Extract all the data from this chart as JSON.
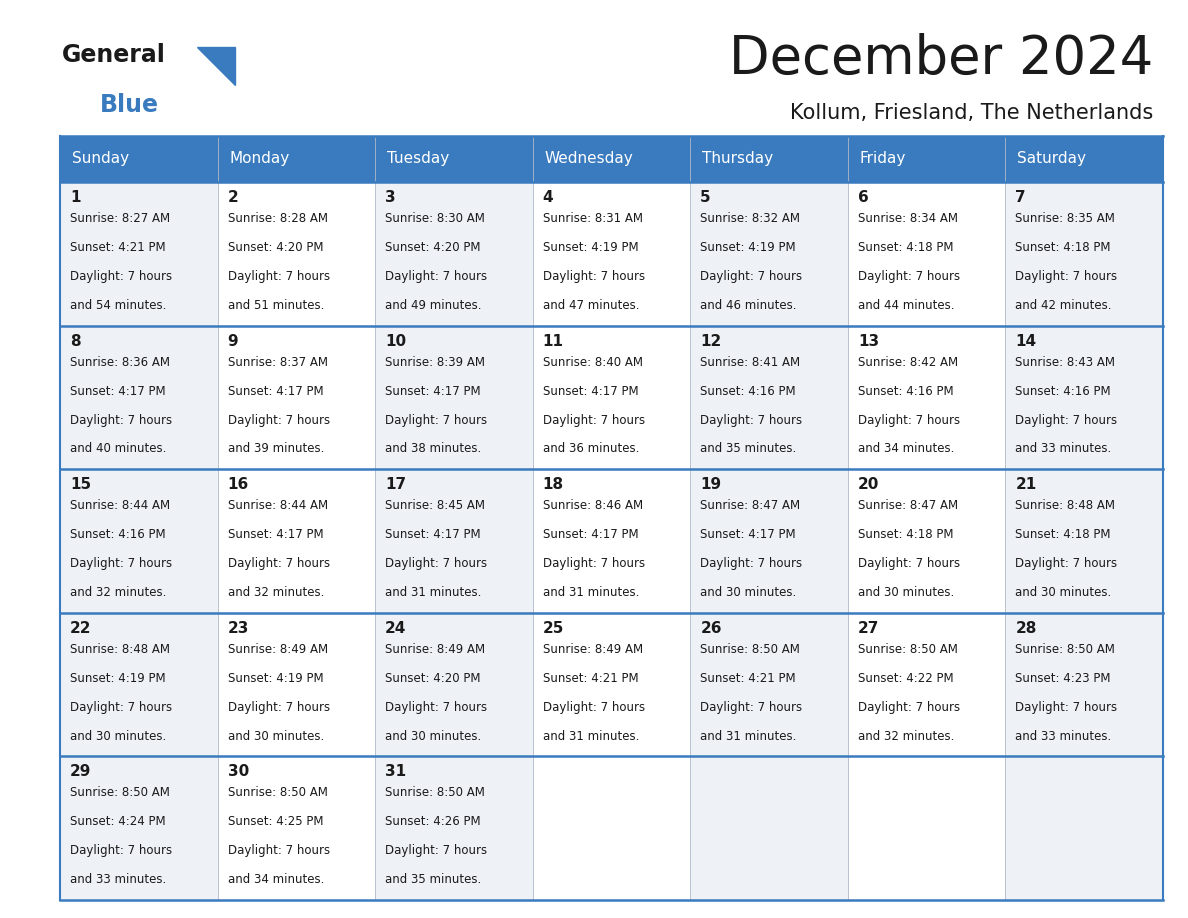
{
  "title": "December 2024",
  "subtitle": "Kollum, Friesland, The Netherlands",
  "header_color": "#3a7bbf",
  "header_text_color": "#ffffff",
  "cell_bg_even": "#eef2f7",
  "cell_bg_odd": "#ffffff",
  "border_color": "#3a7bbf",
  "text_color": "#1a1a1a",
  "days_of_week": [
    "Sunday",
    "Monday",
    "Tuesday",
    "Wednesday",
    "Thursday",
    "Friday",
    "Saturday"
  ],
  "calendar_data": [
    [
      {
        "day": 1,
        "sunrise": "8:27 AM",
        "sunset": "4:21 PM",
        "daylight": "7 hours",
        "daylight2": "and 54 minutes."
      },
      {
        "day": 2,
        "sunrise": "8:28 AM",
        "sunset": "4:20 PM",
        "daylight": "7 hours",
        "daylight2": "and 51 minutes."
      },
      {
        "day": 3,
        "sunrise": "8:30 AM",
        "sunset": "4:20 PM",
        "daylight": "7 hours",
        "daylight2": "and 49 minutes."
      },
      {
        "day": 4,
        "sunrise": "8:31 AM",
        "sunset": "4:19 PM",
        "daylight": "7 hours",
        "daylight2": "and 47 minutes."
      },
      {
        "day": 5,
        "sunrise": "8:32 AM",
        "sunset": "4:19 PM",
        "daylight": "7 hours",
        "daylight2": "and 46 minutes."
      },
      {
        "day": 6,
        "sunrise": "8:34 AM",
        "sunset": "4:18 PM",
        "daylight": "7 hours",
        "daylight2": "and 44 minutes."
      },
      {
        "day": 7,
        "sunrise": "8:35 AM",
        "sunset": "4:18 PM",
        "daylight": "7 hours",
        "daylight2": "and 42 minutes."
      }
    ],
    [
      {
        "day": 8,
        "sunrise": "8:36 AM",
        "sunset": "4:17 PM",
        "daylight": "7 hours",
        "daylight2": "and 40 minutes."
      },
      {
        "day": 9,
        "sunrise": "8:37 AM",
        "sunset": "4:17 PM",
        "daylight": "7 hours",
        "daylight2": "and 39 minutes."
      },
      {
        "day": 10,
        "sunrise": "8:39 AM",
        "sunset": "4:17 PM",
        "daylight": "7 hours",
        "daylight2": "and 38 minutes."
      },
      {
        "day": 11,
        "sunrise": "8:40 AM",
        "sunset": "4:17 PM",
        "daylight": "7 hours",
        "daylight2": "and 36 minutes."
      },
      {
        "day": 12,
        "sunrise": "8:41 AM",
        "sunset": "4:16 PM",
        "daylight": "7 hours",
        "daylight2": "and 35 minutes."
      },
      {
        "day": 13,
        "sunrise": "8:42 AM",
        "sunset": "4:16 PM",
        "daylight": "7 hours",
        "daylight2": "and 34 minutes."
      },
      {
        "day": 14,
        "sunrise": "8:43 AM",
        "sunset": "4:16 PM",
        "daylight": "7 hours",
        "daylight2": "and 33 minutes."
      }
    ],
    [
      {
        "day": 15,
        "sunrise": "8:44 AM",
        "sunset": "4:16 PM",
        "daylight": "7 hours",
        "daylight2": "and 32 minutes."
      },
      {
        "day": 16,
        "sunrise": "8:44 AM",
        "sunset": "4:17 PM",
        "daylight": "7 hours",
        "daylight2": "and 32 minutes."
      },
      {
        "day": 17,
        "sunrise": "8:45 AM",
        "sunset": "4:17 PM",
        "daylight": "7 hours",
        "daylight2": "and 31 minutes."
      },
      {
        "day": 18,
        "sunrise": "8:46 AM",
        "sunset": "4:17 PM",
        "daylight": "7 hours",
        "daylight2": "and 31 minutes."
      },
      {
        "day": 19,
        "sunrise": "8:47 AM",
        "sunset": "4:17 PM",
        "daylight": "7 hours",
        "daylight2": "and 30 minutes."
      },
      {
        "day": 20,
        "sunrise": "8:47 AM",
        "sunset": "4:18 PM",
        "daylight": "7 hours",
        "daylight2": "and 30 minutes."
      },
      {
        "day": 21,
        "sunrise": "8:48 AM",
        "sunset": "4:18 PM",
        "daylight": "7 hours",
        "daylight2": "and 30 minutes."
      }
    ],
    [
      {
        "day": 22,
        "sunrise": "8:48 AM",
        "sunset": "4:19 PM",
        "daylight": "7 hours",
        "daylight2": "and 30 minutes."
      },
      {
        "day": 23,
        "sunrise": "8:49 AM",
        "sunset": "4:19 PM",
        "daylight": "7 hours",
        "daylight2": "and 30 minutes."
      },
      {
        "day": 24,
        "sunrise": "8:49 AM",
        "sunset": "4:20 PM",
        "daylight": "7 hours",
        "daylight2": "and 30 minutes."
      },
      {
        "day": 25,
        "sunrise": "8:49 AM",
        "sunset": "4:21 PM",
        "daylight": "7 hours",
        "daylight2": "and 31 minutes."
      },
      {
        "day": 26,
        "sunrise": "8:50 AM",
        "sunset": "4:21 PM",
        "daylight": "7 hours",
        "daylight2": "and 31 minutes."
      },
      {
        "day": 27,
        "sunrise": "8:50 AM",
        "sunset": "4:22 PM",
        "daylight": "7 hours",
        "daylight2": "and 32 minutes."
      },
      {
        "day": 28,
        "sunrise": "8:50 AM",
        "sunset": "4:23 PM",
        "daylight": "7 hours",
        "daylight2": "and 33 minutes."
      }
    ],
    [
      {
        "day": 29,
        "sunrise": "8:50 AM",
        "sunset": "4:24 PM",
        "daylight": "7 hours",
        "daylight2": "and 33 minutes."
      },
      {
        "day": 30,
        "sunrise": "8:50 AM",
        "sunset": "4:25 PM",
        "daylight": "7 hours",
        "daylight2": "and 34 minutes."
      },
      {
        "day": 31,
        "sunrise": "8:50 AM",
        "sunset": "4:26 PM",
        "daylight": "7 hours",
        "daylight2": "and 35 minutes."
      },
      null,
      null,
      null,
      null
    ]
  ]
}
